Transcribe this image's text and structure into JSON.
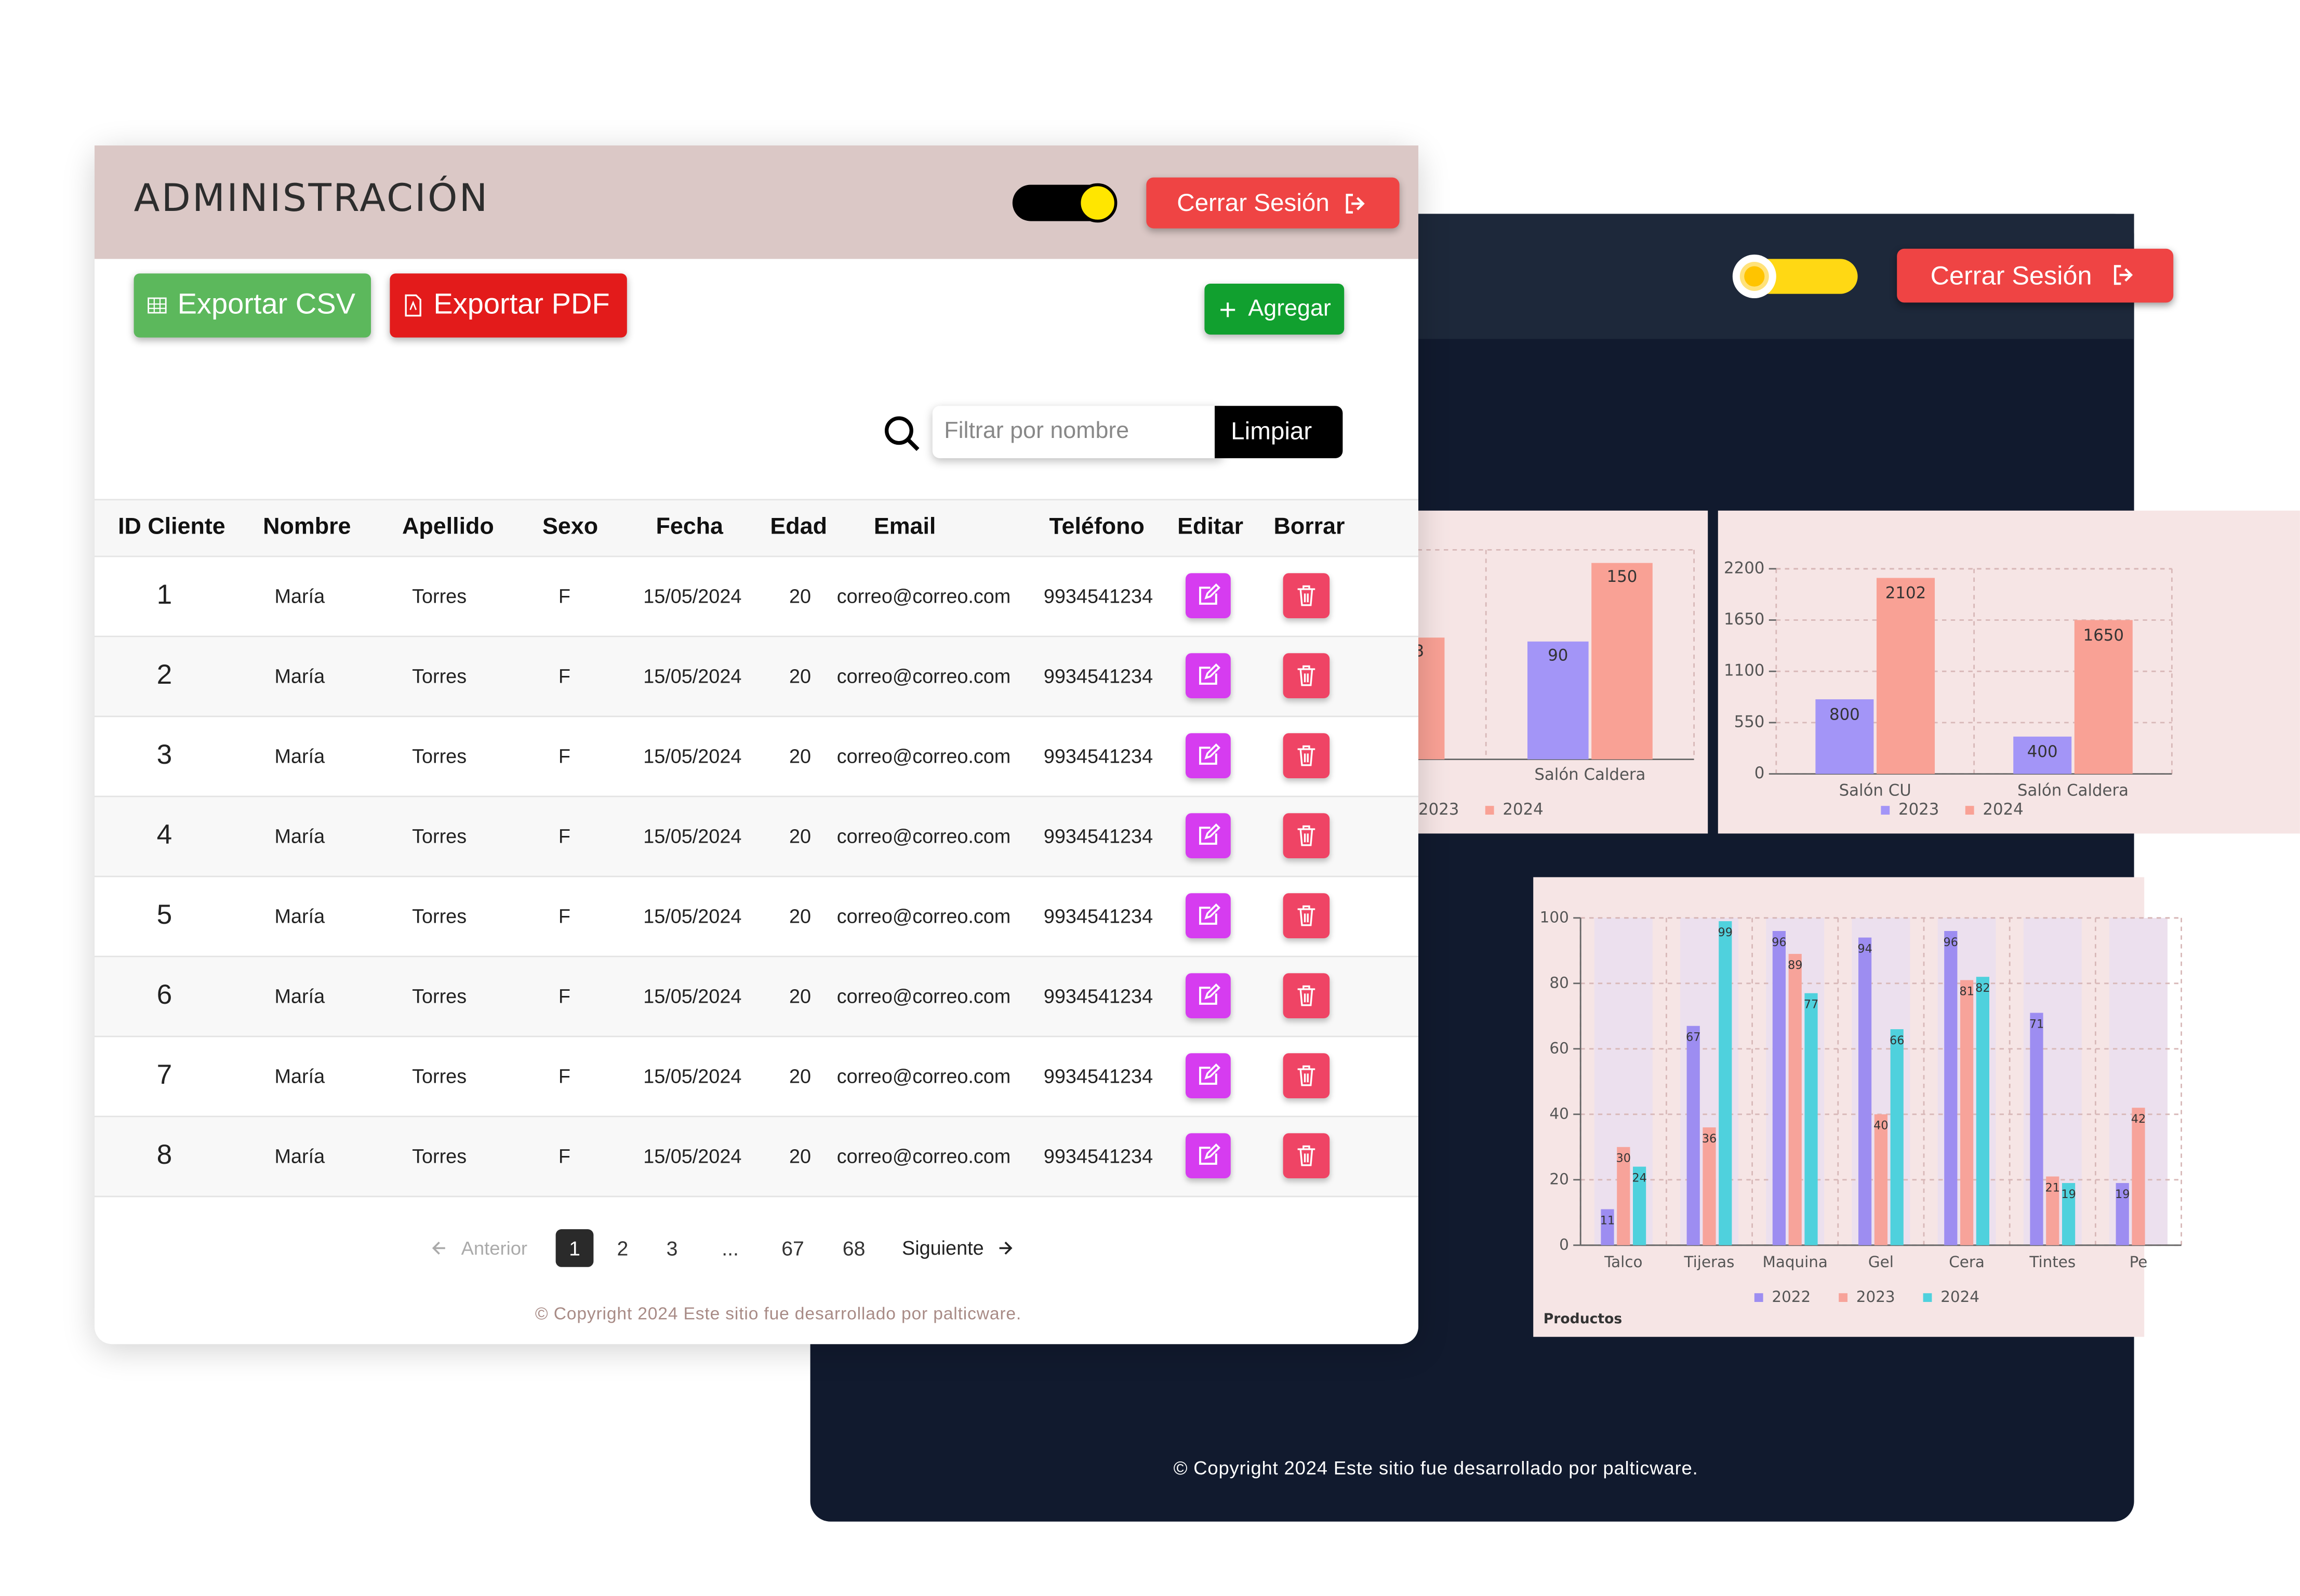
{
  "admin": {
    "title": "ADMINISTRACIÓN",
    "logout": "Cerrar Sesión",
    "export_csv": "Exportar CSV",
    "export_pdf": "Exportar PDF",
    "add": "Agregar",
    "search_placeholder": "Filtrar por nombre",
    "clear": "Limpiar",
    "table": {
      "headers": [
        "ID Cliente",
        "Nombre",
        "Apellido",
        "Sexo",
        "Fecha",
        "Edad",
        "Email",
        "Teléfono",
        "Editar",
        "Borrar"
      ],
      "rows": [
        [
          1,
          "María",
          "Torres",
          "F",
          "15/05/2024",
          20,
          "correo@correo.com",
          "9934541234"
        ],
        [
          2,
          "María",
          "Torres",
          "F",
          "15/05/2024",
          20,
          "correo@correo.com",
          "9934541234"
        ],
        [
          3,
          "María",
          "Torres",
          "F",
          "15/05/2024",
          20,
          "correo@correo.com",
          "9934541234"
        ],
        [
          4,
          "María",
          "Torres",
          "F",
          "15/05/2024",
          20,
          "correo@correo.com",
          "9934541234"
        ],
        [
          5,
          "María",
          "Torres",
          "F",
          "15/05/2024",
          20,
          "correo@correo.com",
          "9934541234"
        ],
        [
          6,
          "María",
          "Torres",
          "F",
          "15/05/2024",
          20,
          "correo@correo.com",
          "9934541234"
        ],
        [
          7,
          "María",
          "Torres",
          "F",
          "15/05/2024",
          20,
          "correo@correo.com",
          "9934541234"
        ],
        [
          8,
          "María",
          "Torres",
          "F",
          "15/05/2024",
          20,
          "correo@correo.com",
          "9934541234"
        ]
      ]
    },
    "pagination": {
      "previous": "Anterior",
      "pages": [
        1,
        2,
        3,
        "...",
        67,
        68
      ],
      "next": "Siguiente"
    },
    "footer": "© Copyright 2024 Este sitio fue desarrollado por palticware."
  },
  "dashboard": {
    "logout": "Cerrar Sesión",
    "charts": [
      {
        "type": "bar",
        "categories": [
          null,
          "Salón Caldera"
        ],
        "series": [
          {
            "name": "2023",
            "color": "#a395f7",
            "values": [
              null,
              90
            ]
          },
          {
            "name": "2024",
            "color": "#f9a195",
            "values": [
              93,
              150
            ]
          }
        ],
        "ylim": [
          0,
          160
        ],
        "grid": true
      },
      {
        "type": "bar",
        "categories": [
          "Salón CU",
          "Salón Caldera"
        ],
        "series": [
          {
            "name": "2023",
            "color": "#a395f7",
            "values": [
              800,
              400
            ]
          },
          {
            "name": "2024",
            "color": "#f9a195",
            "values": [
              2102,
              1650
            ]
          }
        ],
        "ylim": [
          0,
          2200
        ],
        "yticks": [
          0,
          550,
          1100,
          1650,
          2200
        ],
        "grid": true
      },
      {
        "type": "bar",
        "categories": [
          "Talco",
          "Tijeras",
          "Maquina",
          "Gel",
          "Cera",
          "Tintes",
          "Pe"
        ],
        "series": [
          {
            "name": "2022",
            "color": "#9d8df1",
            "values": [
              11,
              67,
              96,
              94,
              96,
              71,
              19
            ]
          },
          {
            "name": "2023",
            "color": "#f7a39a",
            "values": [
              30,
              36,
              89,
              40,
              81,
              21,
              42
            ]
          },
          {
            "name": "2024",
            "color": "#4fd1dd",
            "values": [
              24,
              99,
              77,
              66,
              82,
              19,
              null
            ]
          }
        ],
        "ylim": [
          0,
          100
        ],
        "yticks": [
          0,
          20,
          40,
          60,
          80,
          100
        ],
        "x_label": "Productos",
        "grid": true
      }
    ],
    "footer": "© Copyright 2024 Este sitio fue desarrollado por palticware."
  }
}
